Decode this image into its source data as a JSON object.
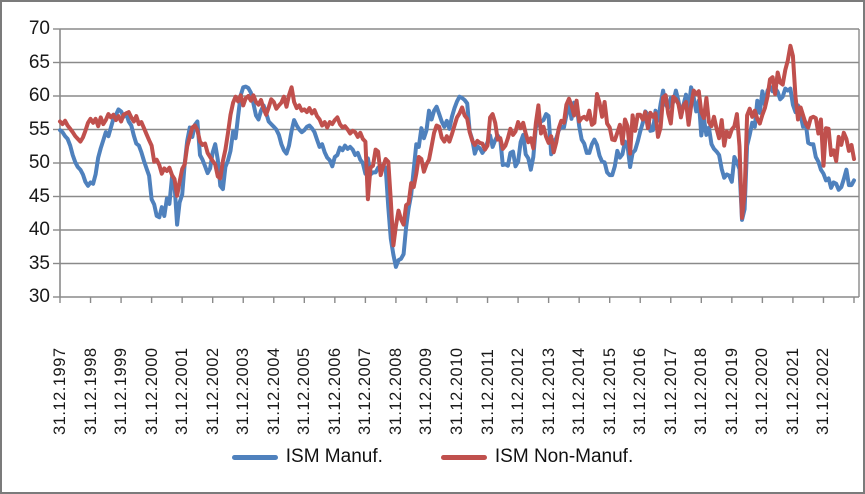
{
  "colors": {
    "manuf": "#4F81BD",
    "nonmanuf": "#C0504D",
    "grid": "#8a8a8a",
    "axis": "#8a8a8a",
    "text": "#191919",
    "frame_border": "#7b7b7b",
    "background": "#ffffff"
  },
  "chart_data": {
    "type": "line",
    "title": "",
    "xlabel": "",
    "ylabel": "",
    "ylim": [
      30,
      70
    ],
    "y_ticks": [
      30,
      35,
      40,
      45,
      50,
      55,
      60,
      65,
      70
    ],
    "grid": true,
    "legend_position": "bottom",
    "x_frequency": "monthly",
    "x_start": "31.12.1997",
    "x_tick_labels": [
      "31.12.1997",
      "31.12.1998",
      "31.12.1999",
      "31.12.2000",
      "31.12.2001",
      "31.12.2002",
      "31.12.2003",
      "31.12.2004",
      "31.12.2005",
      "31.12.2006",
      "31.12.2007",
      "31.12.2008",
      "31.12.2009",
      "31.12.2010",
      "31.12.2011",
      "31.12.2012",
      "31.12.2013",
      "31.12.2014",
      "31.12.2015",
      "31.12.2016",
      "31.12.2017",
      "31.12.2018",
      "31.12.2019",
      "31.12.2020",
      "31.12.2021",
      "31.12.2022"
    ],
    "series": [
      {
        "name": "ISM Manuf.",
        "color": "#4F81BD",
        "values": [
          54.9,
          54.6,
          54.0,
          53.6,
          52.6,
          51.2,
          50.1,
          49.4,
          49.0,
          48.3,
          47.2,
          46.6,
          47.1,
          46.9,
          48.3,
          50.8,
          52.2,
          53.4,
          54.6,
          54.0,
          55.3,
          56.6,
          57.2,
          58.0,
          57.7,
          56.9,
          57.4,
          56.2,
          55.6,
          54.1,
          52.9,
          52.6,
          51.6,
          50.3,
          49.2,
          48.1,
          44.6,
          43.8,
          42.1,
          41.9,
          43.4,
          42.1,
          44.7,
          43.9,
          47.9,
          46.8,
          40.8,
          44.1,
          45.3,
          49.9,
          53.3,
          55.3,
          53.9,
          55.7,
          56.2,
          51.2,
          50.5,
          49.5,
          48.5,
          49.2,
          51.6,
          52.8,
          50.5,
          46.6,
          46.1,
          49.4,
          50.4,
          51.8,
          54.7,
          53.7,
          57.0,
          60.1,
          61.3,
          61.4,
          61.2,
          60.5,
          58.9,
          57.1,
          56.5,
          57.8,
          58.6,
          57.5,
          56.2,
          55.8,
          55.4,
          55.0,
          54.2,
          52.8,
          51.9,
          51.4,
          52.6,
          54.8,
          56.4,
          55.6,
          55.0,
          54.6,
          54.9,
          55.4,
          55.6,
          55.2,
          54.6,
          53.5,
          52.4,
          52.8,
          51.6,
          50.8,
          50.4,
          49.5,
          50.9,
          51.2,
          52.3,
          51.9,
          52.6,
          52.1,
          52.4,
          52.0,
          51.2,
          51.5,
          50.5,
          50.0,
          48.4,
          50.7,
          48.3,
          48.6,
          48.6,
          49.3,
          49.6,
          49.5,
          49.3,
          43.4,
          38.7,
          36.3,
          34.5,
          35.5,
          35.7,
          36.4,
          40.4,
          43.2,
          45.3,
          49.0,
          52.8,
          52.4,
          55.2,
          53.7,
          54.9,
          57.8,
          56.5,
          57.8,
          58.4,
          57.3,
          56.2,
          55.4,
          56.3,
          55.1,
          56.9,
          58.2,
          59.2,
          59.9,
          59.7,
          59.4,
          58.9,
          54.7,
          53.5,
          51.4,
          52.5,
          52.2,
          51.5,
          52.1,
          53.1,
          54.1,
          52.4,
          53.4,
          54.1,
          53.5,
          49.7,
          49.8,
          49.6,
          51.5,
          51.7,
          49.5,
          50.2,
          53.1,
          54.2,
          51.3,
          50.7,
          49.0,
          50.9,
          55.4,
          55.7,
          56.2,
          56.4,
          57.3,
          57.0,
          51.3,
          53.2,
          53.7,
          54.9,
          55.4,
          55.3,
          57.1,
          59.0,
          56.6,
          59.0,
          58.7,
          55.5,
          53.5,
          52.9,
          51.5,
          51.5,
          52.8,
          53.5,
          52.7,
          51.1,
          50.2,
          50.1,
          48.6,
          48.2,
          48.2,
          49.5,
          51.8,
          50.8,
          51.3,
          53.2,
          52.6,
          49.4,
          51.5,
          51.9,
          53.2,
          54.7,
          56.0,
          57.7,
          57.2,
          54.8,
          54.9,
          57.8,
          56.3,
          58.8,
          60.8,
          58.7,
          58.2,
          59.7,
          59.1,
          60.8,
          59.3,
          57.3,
          58.7,
          60.2,
          58.1,
          61.3,
          59.8,
          57.7,
          59.3,
          54.1,
          56.6,
          54.2,
          55.3,
          52.8,
          52.1,
          51.7,
          51.2,
          49.1,
          47.8,
          48.3,
          48.1,
          47.2,
          50.9,
          50.1,
          49.1,
          41.5,
          43.1,
          52.6,
          54.2,
          56.0,
          55.4,
          59.3,
          57.5,
          60.7,
          58.7,
          60.8,
          61.4,
          60.7,
          61.2,
          60.6,
          59.5,
          59.9,
          61.1,
          60.8,
          61.1,
          58.7,
          57.6,
          58.6,
          57.1,
          55.4,
          56.1,
          53.0,
          52.8,
          52.8,
          50.9,
          50.2,
          49.0,
          48.4,
          47.4,
          47.7,
          46.3,
          47.1,
          46.9,
          46.0,
          46.4,
          47.6,
          49.0,
          46.7,
          46.7,
          47.4
        ]
      },
      {
        "name": "ISM Non-Manuf.",
        "color": "#C0504D",
        "values": [
          56.2,
          55.8,
          56.3,
          55.6,
          55.1,
          54.6,
          54.0,
          53.6,
          53.2,
          53.8,
          54.8,
          56.0,
          56.6,
          56.0,
          56.6,
          55.5,
          56.8,
          55.8,
          56.4,
          57.3,
          56.8,
          57.2,
          56.4,
          57.0,
          56.2,
          57.2,
          57.4,
          57.6,
          56.8,
          56.2,
          57.0,
          55.8,
          56.1,
          55.2,
          54.3,
          53.4,
          52.6,
          50.2,
          50.5,
          49.7,
          48.4,
          49.2,
          48.8,
          49.3,
          48.2,
          47.6,
          45.1,
          47.2,
          49.1,
          49.8,
          52.5,
          53.9,
          55.3,
          55.6,
          54.9,
          53.2,
          52.7,
          52.9,
          51.5,
          50.9,
          50.3,
          49.8,
          48.0,
          47.7,
          50.3,
          52.0,
          54.5,
          57.2,
          59.0,
          59.9,
          59.2,
          60.1,
          58.6,
          59.7,
          60.0,
          59.3,
          60.1,
          59.1,
          58.7,
          59.4,
          58.1,
          57.2,
          58.3,
          59.5,
          59.1,
          58.1,
          58.6,
          59.0,
          59.9,
          58.4,
          60.1,
          61.3,
          59.1,
          58.2,
          58.6,
          57.8,
          58.0,
          57.6,
          58.2,
          57.4,
          57.9,
          57.0,
          56.5,
          55.6,
          56.1,
          55.3,
          56.1,
          55.8,
          56.4,
          56.8,
          55.8,
          55.3,
          55.5,
          55.0,
          54.4,
          54.8,
          54.6,
          53.9,
          54.5,
          53.6,
          53.2,
          44.6,
          49.3,
          49.6,
          52.0,
          51.7,
          48.2,
          49.5,
          50.6,
          50.2,
          44.4,
          37.7,
          40.6,
          42.9,
          41.6,
          40.8,
          43.7,
          44.0,
          47.0,
          46.4,
          48.4,
          50.9,
          50.6,
          48.7,
          49.8,
          50.5,
          52.5,
          54.5,
          55.6,
          55.4,
          53.8,
          53.2,
          54.0,
          53.2,
          54.3,
          55.6,
          56.8,
          57.4,
          58.3,
          57.1,
          56.6,
          54.6,
          53.3,
          52.7,
          53.3,
          53.0,
          52.9,
          52.0,
          52.6,
          56.8,
          57.3,
          56.0,
          53.5,
          53.7,
          52.1,
          52.6,
          53.7,
          55.1,
          54.2,
          54.7,
          56.1,
          55.2,
          56.0,
          54.4,
          53.1,
          53.7,
          52.2,
          56.0,
          58.6,
          54.4,
          55.4,
          53.9,
          53.0,
          54.0,
          51.6,
          53.1,
          55.2,
          56.3,
          56.0,
          58.7,
          59.6,
          58.6,
          57.1,
          59.3,
          56.2,
          56.7,
          56.9,
          56.5,
          57.8,
          55.7,
          56.0,
          60.3,
          59.0,
          56.9,
          59.1,
          55.9,
          55.3,
          53.5,
          53.4,
          54.5,
          55.7,
          52.9,
          56.5,
          55.5,
          51.4,
          57.1,
          54.8,
          57.2,
          57.2,
          56.5,
          57.6,
          55.2,
          57.5,
          56.9,
          57.4,
          53.9,
          55.3,
          59.8,
          60.1,
          57.4,
          55.9,
          59.9,
          59.5,
          58.8,
          56.8,
          58.6,
          59.1,
          55.7,
          58.5,
          60.8,
          60.3,
          60.7,
          57.6,
          56.7,
          59.7,
          56.1,
          55.5,
          56.9,
          55.1,
          53.7,
          56.4,
          52.6,
          54.7,
          53.9,
          55.0,
          55.5,
          57.3,
          52.5,
          41.8,
          45.4,
          57.1,
          58.1,
          56.9,
          57.8,
          56.6,
          55.9,
          57.2,
          58.2,
          59.9,
          62.5,
          62.8,
          60.3,
          63.5,
          62.0,
          61.7,
          63.9,
          65.3,
          67.5,
          66.0,
          59.9,
          56.5,
          58.3,
          57.1,
          55.9,
          55.3,
          56.7,
          56.9,
          56.7,
          54.4,
          56.5,
          49.6,
          55.2,
          55.1,
          51.2,
          51.9,
          50.3,
          53.9,
          52.7,
          54.5,
          53.6,
          51.8,
          52.7,
          50.6
        ]
      }
    ]
  }
}
